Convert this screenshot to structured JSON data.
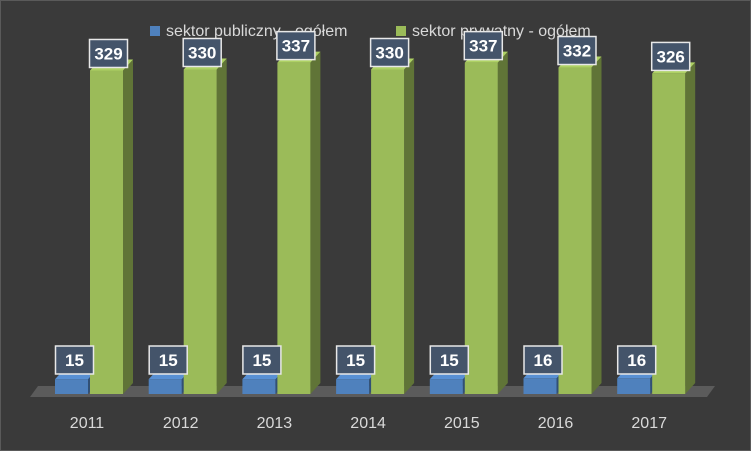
{
  "chart_data": {
    "type": "bar",
    "title": "",
    "xlabel": "",
    "ylabel": "",
    "ylim": [
      0,
      360
    ],
    "grid": false,
    "legend_position": "top",
    "categories": [
      "2011",
      "2012",
      "2013",
      "2014",
      "2015",
      "2016",
      "2017"
    ],
    "series": [
      {
        "name": "sektor publiczny - ogółem",
        "color": "#4f81bd",
        "values": [
          15,
          15,
          15,
          15,
          15,
          16,
          16
        ],
        "labels": [
          "15",
          "15",
          "15",
          "15",
          "15",
          "16",
          "16"
        ]
      },
      {
        "name": "sektor prywatny - ogółem",
        "color": "#9bbb59",
        "values": [
          329,
          330,
          337,
          330,
          337,
          332,
          326
        ],
        "labels": [
          "329",
          "330",
          "337",
          "330",
          "337",
          "332",
          "326"
        ]
      }
    ]
  },
  "colors": {
    "background": "#3a3a3a",
    "label_box": "#44546a",
    "label_border": "#e8e8e8",
    "floor": "#5b5b5b"
  }
}
